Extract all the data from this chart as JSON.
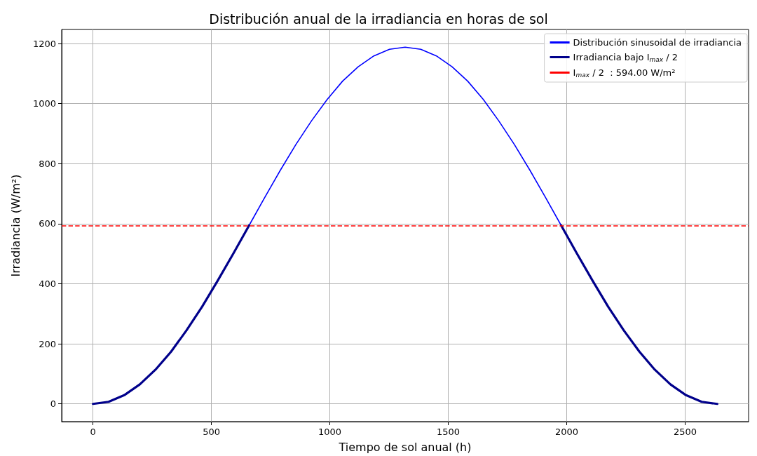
{
  "chart_data": {
    "type": "line",
    "title": "Distribución anual de la irradiancia en horas de sol",
    "xlabel": "Tiempo de sol anual (h)",
    "ylabel": "Irradiancia (W/m²)",
    "x": [
      0,
      66,
      132,
      198,
      264,
      330,
      395,
      461,
      527,
      593,
      659,
      725,
      791,
      857,
      923,
      989,
      1054,
      1120,
      1186,
      1252,
      1318,
      1384,
      1450,
      1516,
      1582,
      1648,
      1713,
      1779,
      1845,
      1911,
      1977,
      2043,
      2109,
      2175,
      2241,
      2307,
      2372,
      2438,
      2504,
      2570,
      2636
    ],
    "series": [
      {
        "name": "Distribución sinusoidal de irradiancia",
        "color": "#0000ff",
        "values": [
          null,
          null,
          null,
          null,
          null,
          null,
          null,
          null,
          null,
          null,
          594,
          687,
          778,
          864,
          943,
          1014,
          1075,
          1123,
          1159,
          1181,
          1188,
          1181,
          1159,
          1123,
          1075,
          1014,
          943,
          864,
          778,
          687,
          594,
          null,
          null,
          null,
          null,
          null,
          null,
          null,
          null,
          null,
          null
        ]
      },
      {
        "name": "Irradiancia bajo I$_{max}$ / 2",
        "color": "#00008b",
        "values": [
          0,
          7,
          29,
          65,
          114,
          174,
          245,
          324,
          411,
          501,
          594,
          null,
          null,
          null,
          null,
          null,
          null,
          null,
          null,
          null,
          null,
          null,
          null,
          null,
          null,
          null,
          null,
          null,
          null,
          null,
          594,
          501,
          411,
          324,
          245,
          174,
          114,
          65,
          29,
          7,
          0
        ]
      }
    ],
    "ref_lines": [
      {
        "axis": "y",
        "value": 594,
        "label": "I$_{max}$ / 2  : 594.00 W/m²",
        "color": "#ff0000",
        "line_style": "dashed"
      }
    ],
    "xlim": [
      -132,
      2768
    ],
    "xticks": [
      0,
      500,
      1000,
      1500,
      2000,
      2500
    ],
    "ylim": [
      -59,
      1247
    ],
    "yticks": [
      0,
      200,
      400,
      600,
      800,
      1000,
      1200
    ],
    "grid": true,
    "legend": "top right",
    "marker": "none",
    "line_style": "solid"
  }
}
